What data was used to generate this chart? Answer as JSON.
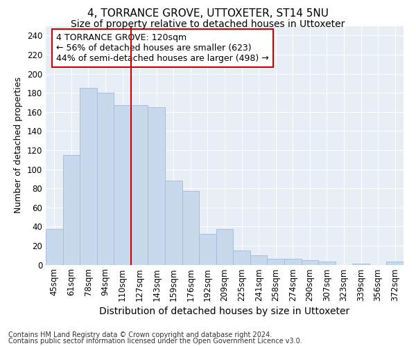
{
  "title": "4, TORRANCE GROVE, UTTOXETER, ST14 5NU",
  "subtitle": "Size of property relative to detached houses in Uttoxeter",
  "xlabel": "Distribution of detached houses by size in Uttoxeter",
  "ylabel": "Number of detached properties",
  "categories": [
    "45sqm",
    "61sqm",
    "78sqm",
    "94sqm",
    "110sqm",
    "127sqm",
    "143sqm",
    "159sqm",
    "176sqm",
    "192sqm",
    "209sqm",
    "225sqm",
    "241sqm",
    "258sqm",
    "274sqm",
    "290sqm",
    "307sqm",
    "323sqm",
    "339sqm",
    "356sqm",
    "372sqm"
  ],
  "values": [
    37,
    115,
    185,
    180,
    167,
    167,
    165,
    88,
    77,
    32,
    37,
    15,
    10,
    6,
    6,
    5,
    3,
    0,
    1,
    0,
    3
  ],
  "bar_color": "#c8d9ee",
  "bar_edgecolor": "#aabdd8",
  "vline_index": 5,
  "vline_color": "#cc0000",
  "annotation_line1": "4 TORRANCE GROVE: 120sqm",
  "annotation_line2": "← 56% of detached houses are smaller (623)",
  "annotation_line3": "44% of semi-detached houses are larger (498) →",
  "box_edgecolor": "#cc0000",
  "ylim": [
    0,
    250
  ],
  "yticks": [
    0,
    20,
    40,
    60,
    80,
    100,
    120,
    140,
    160,
    180,
    200,
    220,
    240
  ],
  "footer_line1": "Contains HM Land Registry data © Crown copyright and database right 2024.",
  "footer_line2": "Contains public sector information licensed under the Open Government Licence v3.0.",
  "bg_color": "#e8eef6",
  "grid_color": "#ffffff",
  "fig_bg_color": "#ffffff",
  "title_fontsize": 11,
  "subtitle_fontsize": 10,
  "xlabel_fontsize": 10,
  "ylabel_fontsize": 9,
  "tick_fontsize": 8.5,
  "annotation_fontsize": 9,
  "footer_fontsize": 7
}
